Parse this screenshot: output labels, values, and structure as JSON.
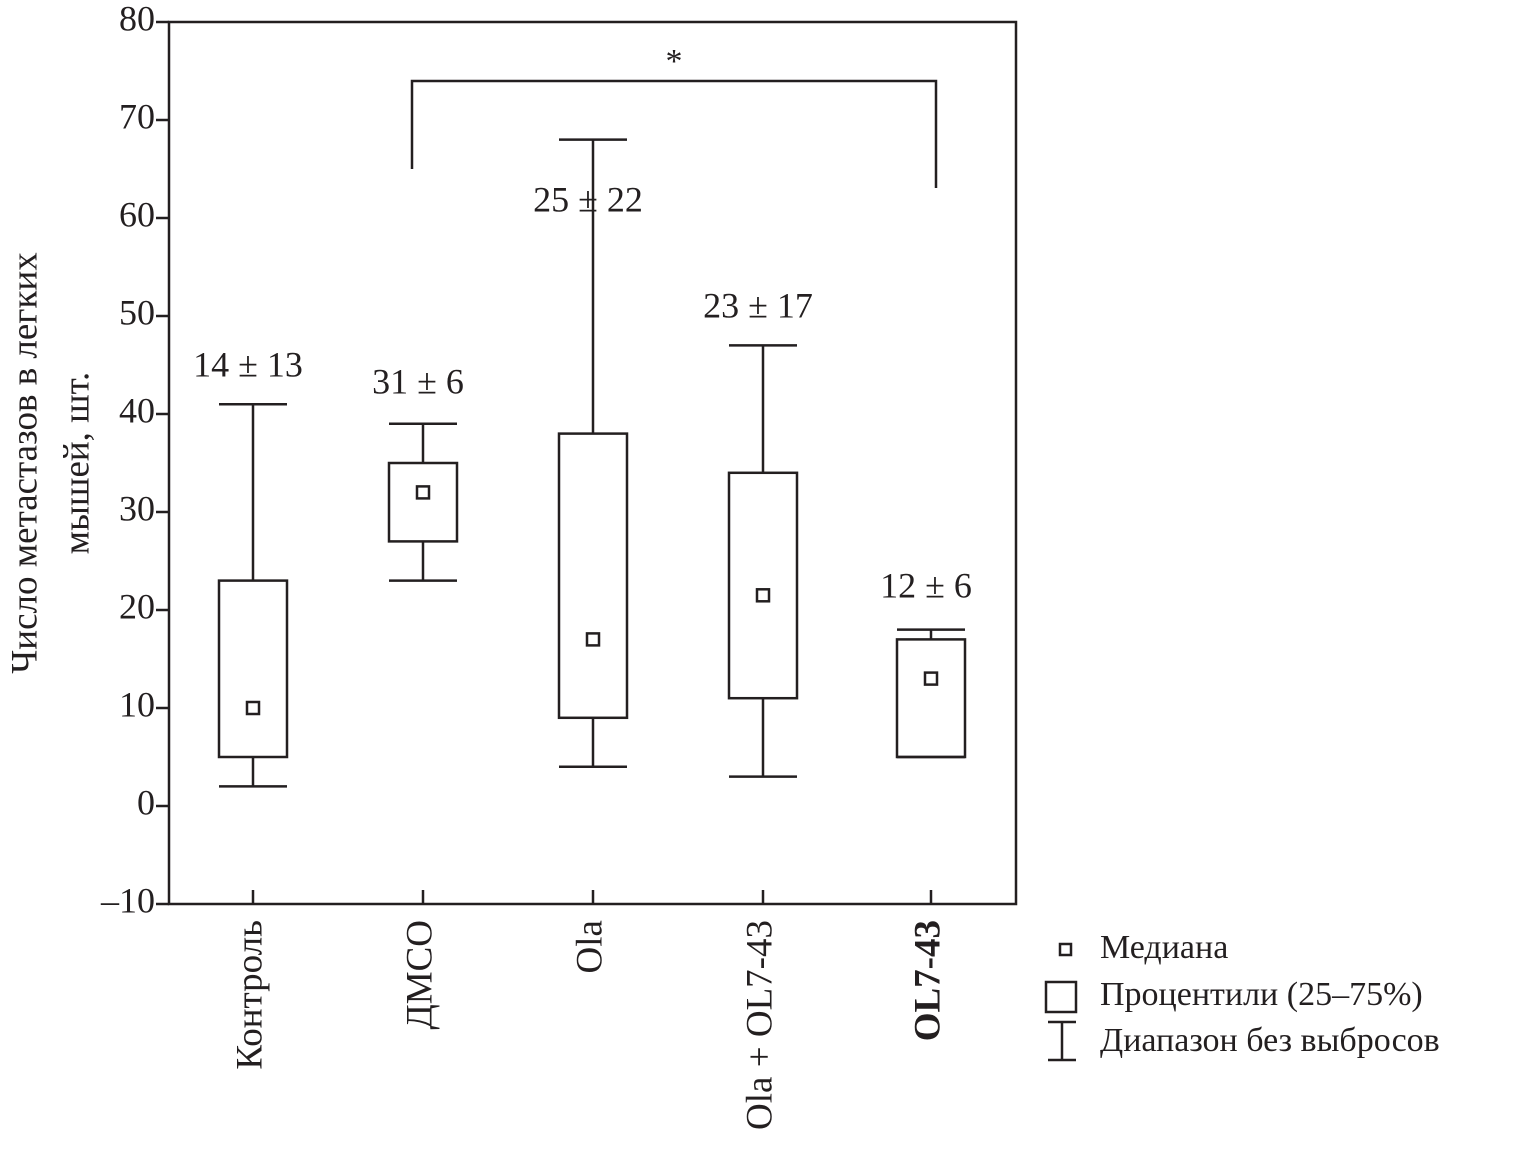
{
  "chart_data": {
    "type": "box",
    "ylabel": [
      "Число метастазов в легких",
      "мышей, шт."
    ],
    "categories": [
      "Контроль",
      "ДМСО",
      "Ola",
      "Ola + OL7-43",
      "OL7-43"
    ],
    "bold": [
      false,
      false,
      false,
      false,
      true
    ],
    "boxes": [
      {
        "whislo": 2,
        "q1": 5,
        "med": 10,
        "q3": 23,
        "whishi": 41
      },
      {
        "whislo": 23,
        "q1": 27,
        "med": 32,
        "q3": 35,
        "whishi": 39
      },
      {
        "whislo": 4,
        "q1": 9,
        "med": 17,
        "q3": 38,
        "whishi": 68
      },
      {
        "whislo": 3,
        "q1": 11,
        "med": 21.5,
        "q3": 34,
        "whishi": 47
      },
      {
        "whislo": 5,
        "q1": 5,
        "med": 13,
        "q3": 17,
        "whishi": 18
      }
    ],
    "annotations": [
      "14 ± 13",
      "31 ± 6",
      "25 ± 22",
      "23 ± 17",
      "12 ± 6"
    ],
    "significance": "*",
    "ylim": [
      -10,
      80
    ],
    "yticks": [
      {
        "value": -10,
        "label": "–10"
      },
      0,
      10,
      20,
      30,
      40,
      50,
      60,
      70,
      80
    ],
    "legend": [
      "Медиана",
      "Процентили (25–75%)",
      "Диапазон без выбросов"
    ],
    "color": "#231f20"
  }
}
